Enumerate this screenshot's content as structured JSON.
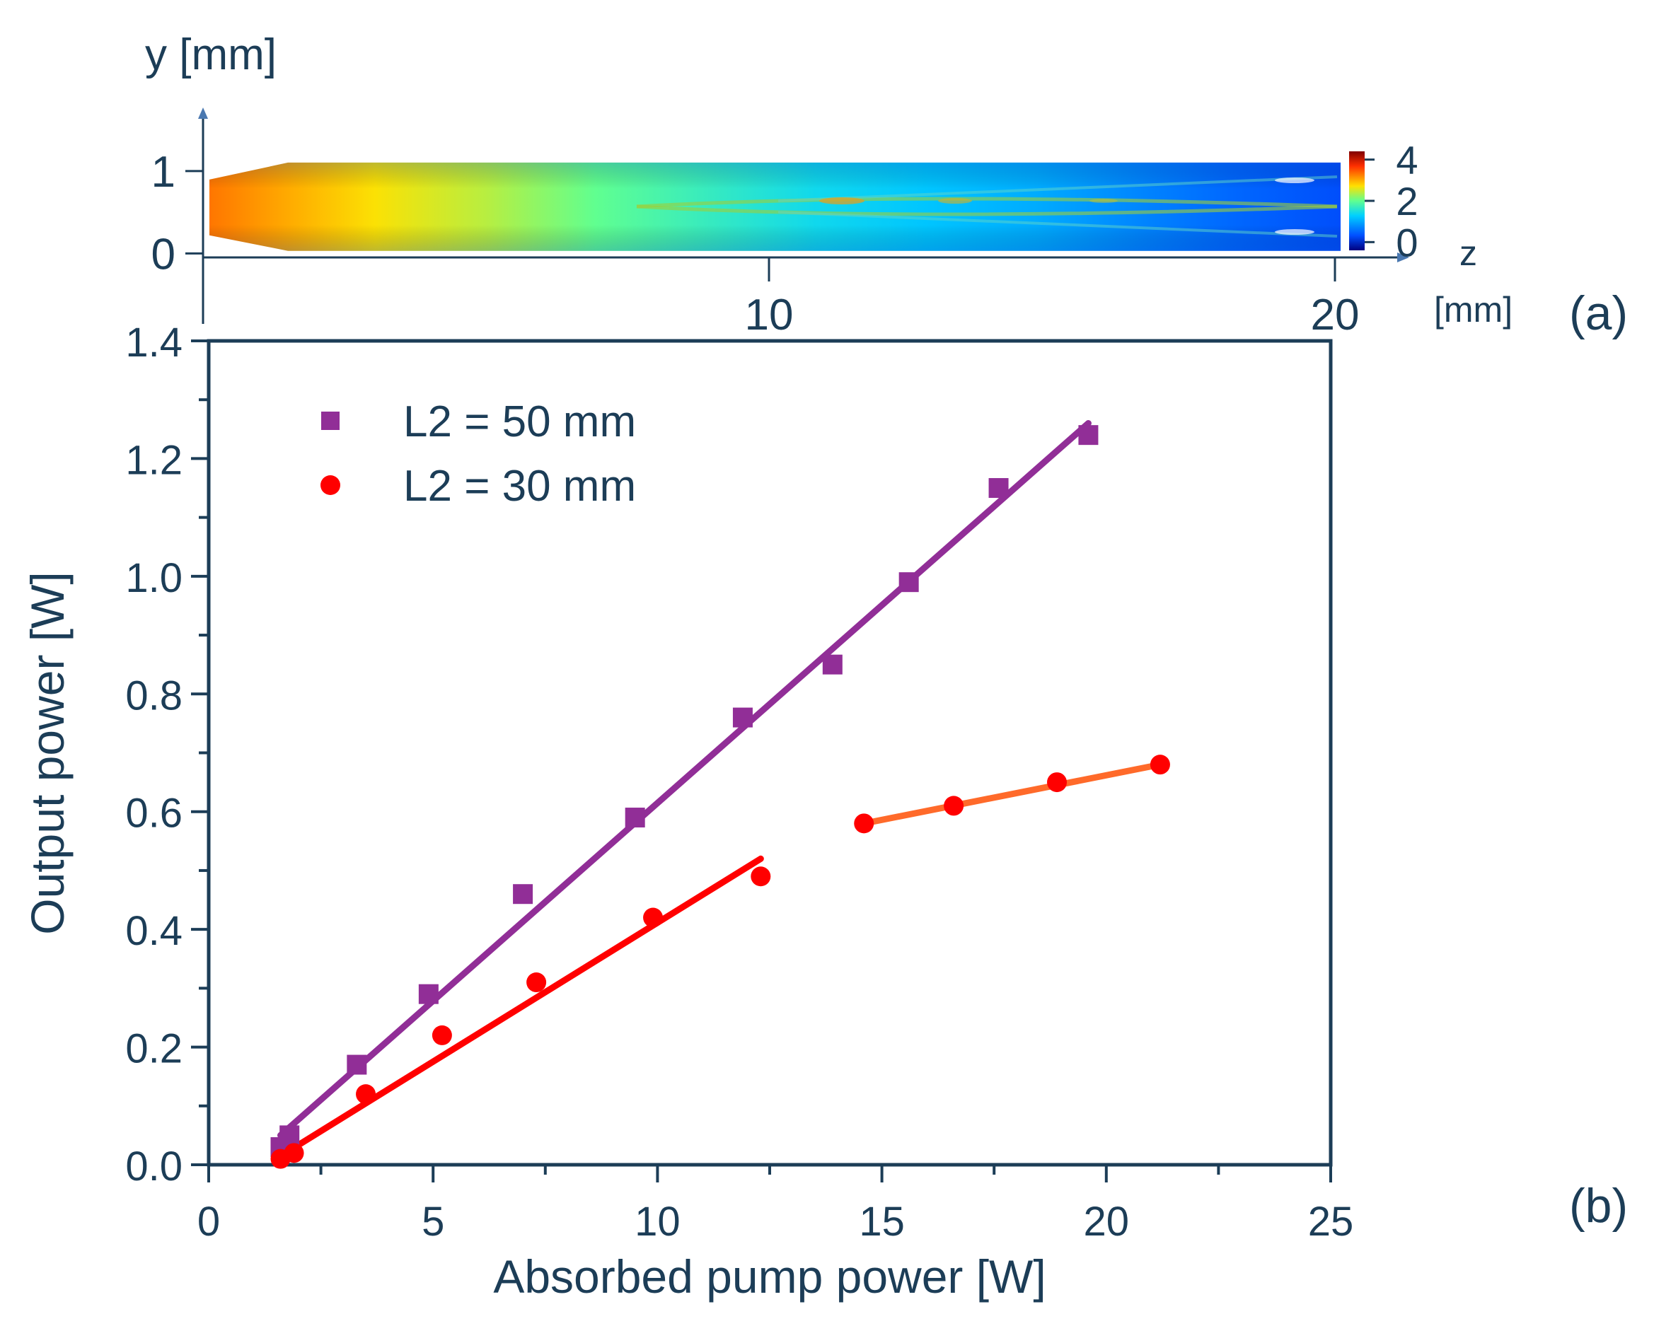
{
  "panel_labels": {
    "a": "(a)",
    "b": "(b)"
  },
  "colors": {
    "axis": "#1c3d57",
    "s50": "#912e97",
    "s30": "#ff0000",
    "fit30b": "#ff6a2a"
  },
  "chart_data": [
    {
      "type": "heatmap",
      "panel": "(a)",
      "y_axis_label": "y [mm]",
      "x_axis_label_top": "z",
      "x_axis_label_bottom": "[mm]",
      "xlim": [
        0,
        20
      ],
      "ylim": [
        -0.1,
        1.3
      ],
      "x_ticks": [
        {
          "value": 10,
          "label": "10"
        },
        {
          "value": 20,
          "label": "20"
        }
      ],
      "y_ticks": [
        {
          "value": 0,
          "label": "0"
        },
        {
          "value": 1,
          "label": "1"
        }
      ],
      "colorbar": {
        "range": [
          -0.4,
          4.4
        ],
        "ticks": [
          {
            "value": 0,
            "label": "0"
          },
          {
            "value": 2,
            "label": "2"
          },
          {
            "value": 4,
            "label": "4"
          }
        ]
      },
      "profile": {
        "z": [
          0,
          1.5,
          3,
          5,
          7,
          9,
          11,
          13,
          15,
          17,
          18.5,
          20.5
        ],
        "value": [
          3.3,
          3.0,
          2.7,
          2.4,
          2.0,
          1.7,
          1.4,
          1.2,
          1.0,
          0.7,
          0.5,
          0.3
        ]
      }
    },
    {
      "type": "scatter",
      "panel": "(b)",
      "xlabel": "Absorbed pump power [W]",
      "ylabel": "Output power [W]",
      "xlim": [
        0,
        25
      ],
      "ylim": [
        0,
        1.4
      ],
      "x_ticks": [
        {
          "value": 0,
          "label": "0"
        },
        {
          "value": 5,
          "label": "5"
        },
        {
          "value": 10,
          "label": "10"
        },
        {
          "value": 15,
          "label": "15"
        },
        {
          "value": 20,
          "label": "20"
        },
        {
          "value": 25,
          "label": "25"
        }
      ],
      "y_ticks": [
        {
          "value": 0,
          "label": "0.0"
        },
        {
          "value": 0.2,
          "label": "0.2"
        },
        {
          "value": 0.4,
          "label": "0.4"
        },
        {
          "value": 0.6,
          "label": "0.6"
        },
        {
          "value": 0.8,
          "label": "0.8"
        },
        {
          "value": 1.0,
          "label": "1.0"
        },
        {
          "value": 1.2,
          "label": "1.2"
        },
        {
          "value": 1.4,
          "label": "1.4"
        }
      ],
      "legend_position": "top-left",
      "series": [
        {
          "name": "L2 = 50 mm",
          "marker": "square",
          "color": "#912e97",
          "x": [
            1.6,
            1.8,
            3.3,
            4.9,
            7.0,
            9.5,
            11.9,
            13.9,
            15.6,
            17.6,
            19.6
          ],
          "y": [
            0.03,
            0.05,
            0.17,
            0.29,
            0.46,
            0.59,
            0.76,
            0.85,
            0.99,
            1.15,
            1.24
          ],
          "fit": {
            "x": [
              1.6,
              19.6
            ],
            "y": [
              0.05,
              1.26
            ]
          }
        },
        {
          "name": "L2 = 30 mm",
          "marker": "circle",
          "color": "#ff0000",
          "x": [
            1.6,
            1.9,
            3.5,
            5.2,
            7.3,
            9.9,
            12.3,
            14.6,
            16.6,
            18.9,
            21.2
          ],
          "y": [
            0.01,
            0.02,
            0.12,
            0.22,
            0.31,
            0.42,
            0.49,
            0.58,
            0.61,
            0.65,
            0.68
          ],
          "fit": {
            "x": [
              1.5,
              12.3
            ],
            "y": [
              0.01,
              0.52
            ]
          },
          "fit2": {
            "x": [
              14.6,
              21.2
            ],
            "y": [
              0.58,
              0.68
            ],
            "color": "#ff6a2a"
          }
        }
      ]
    }
  ]
}
